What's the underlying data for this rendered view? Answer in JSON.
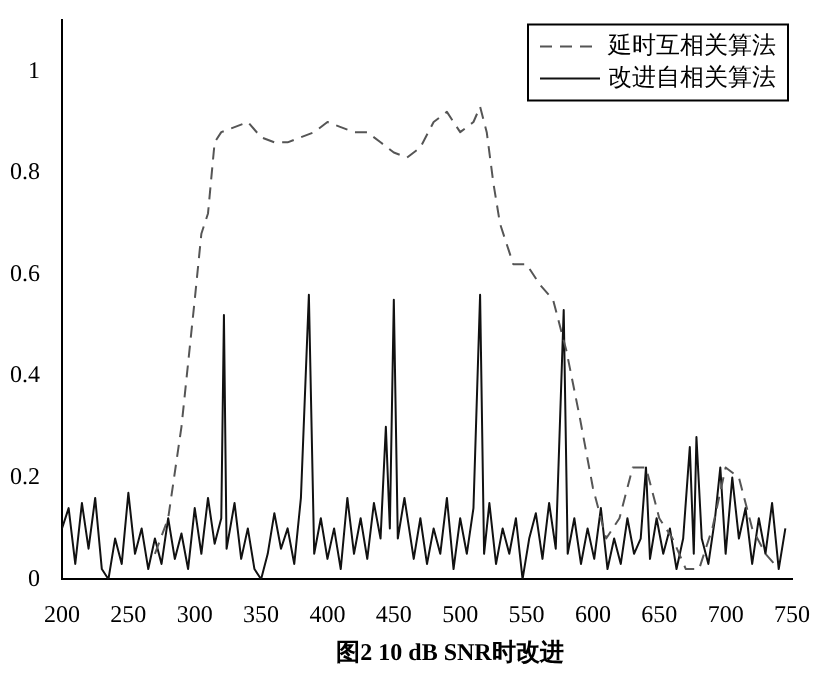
{
  "chart_data": {
    "type": "line",
    "annotations": [
      "图2 10 dB SNR时改进"
    ],
    "xlim": [
      200,
      750
    ],
    "xticks": [
      200,
      250,
      300,
      350,
      400,
      450,
      500,
      550,
      600,
      650,
      700,
      750
    ],
    "ylim": [
      0,
      1.1
    ],
    "yticks": [
      0,
      0.2,
      0.4,
      0.6,
      0.8,
      1
    ],
    "legend": "top right",
    "grid": false,
    "marker": "none",
    "series": [
      {
        "name": "延时互相关算法",
        "color": "#555555",
        "line_style": "dashed",
        "x": [
          270,
          280,
          290,
          300,
          305,
          310,
          315,
          320,
          330,
          340,
          350,
          360,
          370,
          380,
          390,
          400,
          410,
          420,
          430,
          440,
          450,
          460,
          470,
          480,
          490,
          500,
          510,
          515,
          520,
          525,
          530,
          540,
          550,
          560,
          570,
          580,
          590,
          600,
          610,
          620,
          630,
          640,
          650,
          660,
          670,
          680,
          690,
          700,
          710,
          720,
          730,
          740
        ],
        "values": [
          0.05,
          0.12,
          0.3,
          0.55,
          0.68,
          0.72,
          0.86,
          0.88,
          0.89,
          0.9,
          0.87,
          0.86,
          0.86,
          0.87,
          0.88,
          0.9,
          0.89,
          0.88,
          0.88,
          0.86,
          0.84,
          0.83,
          0.85,
          0.9,
          0.92,
          0.88,
          0.9,
          0.93,
          0.88,
          0.78,
          0.7,
          0.62,
          0.62,
          0.58,
          0.55,
          0.45,
          0.32,
          0.18,
          0.08,
          0.12,
          0.22,
          0.22,
          0.12,
          0.08,
          0.02,
          0.02,
          0.1,
          0.22,
          0.2,
          0.1,
          0.05,
          0.02
        ]
      },
      {
        "name": "改进自相关算法",
        "color": "#111111",
        "line_style": "solid",
        "x": [
          200,
          205,
          210,
          215,
          220,
          225,
          230,
          235,
          240,
          245,
          250,
          255,
          260,
          265,
          270,
          275,
          280,
          285,
          290,
          295,
          300,
          305,
          310,
          315,
          320,
          322,
          324,
          330,
          335,
          340,
          345,
          350,
          355,
          360,
          365,
          370,
          375,
          380,
          386,
          390,
          395,
          400,
          405,
          410,
          415,
          420,
          425,
          430,
          435,
          440,
          444,
          447,
          450,
          453,
          458,
          465,
          470,
          475,
          480,
          485,
          490,
          495,
          500,
          505,
          510,
          515,
          518,
          522,
          527,
          532,
          537,
          542,
          547,
          552,
          557,
          562,
          567,
          572,
          578,
          581,
          586,
          591,
          596,
          601,
          606,
          611,
          616,
          621,
          626,
          631,
          636,
          640,
          643,
          648,
          653,
          658,
          663,
          668,
          673,
          676,
          678,
          682,
          687,
          692,
          696,
          700,
          705,
          710,
          715,
          720,
          725,
          730,
          735,
          740,
          745
        ],
        "values": [
          0.1,
          0.14,
          0.03,
          0.15,
          0.06,
          0.16,
          0.02,
          0,
          0.08,
          0.03,
          0.17,
          0.05,
          0.1,
          0.02,
          0.08,
          0.03,
          0.12,
          0.04,
          0.09,
          0.02,
          0.14,
          0.05,
          0.16,
          0.07,
          0.12,
          0.52,
          0.06,
          0.15,
          0.04,
          0.1,
          0.02,
          0,
          0.05,
          0.13,
          0.06,
          0.1,
          0.03,
          0.16,
          0.56,
          0.05,
          0.12,
          0.04,
          0.1,
          0.02,
          0.16,
          0.05,
          0.12,
          0.04,
          0.15,
          0.08,
          0.3,
          0.1,
          0.55,
          0.08,
          0.16,
          0.04,
          0.12,
          0.03,
          0.1,
          0.05,
          0.16,
          0.02,
          0.12,
          0.05,
          0.14,
          0.56,
          0.05,
          0.15,
          0.03,
          0.1,
          0.05,
          0.12,
          0,
          0.08,
          0.13,
          0.04,
          0.15,
          0.06,
          0.53,
          0.05,
          0.12,
          0.03,
          0.1,
          0.04,
          0.14,
          0.02,
          0.08,
          0.03,
          0.12,
          0.05,
          0.08,
          0.22,
          0.04,
          0.12,
          0.05,
          0.1,
          0.02,
          0.08,
          0.26,
          0.05,
          0.28,
          0.08,
          0.03,
          0.12,
          0.22,
          0.05,
          0.2,
          0.08,
          0.14,
          0.03,
          0.12,
          0.05,
          0.15,
          0.02,
          0.1
        ]
      }
    ]
  }
}
